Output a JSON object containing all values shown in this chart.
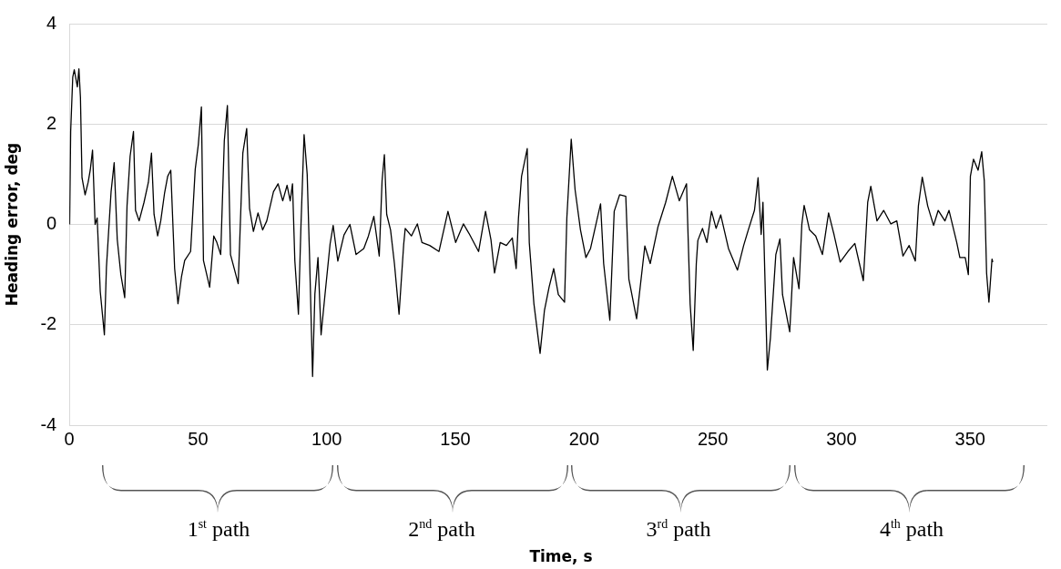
{
  "chart_data": {
    "type": "line",
    "ylabel": "Heading error, deg",
    "x": [
      0.1,
      0.5,
      1.3,
      1.9,
      3.1,
      3.7,
      4.3,
      4.9,
      6.1,
      7.3,
      8.1,
      9.0,
      10.0,
      10.8,
      12.0,
      13.6,
      14.4,
      16.2,
      17.4,
      18.6,
      20.0,
      21.5,
      22.4,
      23.6,
      24.9,
      25.7,
      27.1,
      29.0,
      30.7,
      31.9,
      32.9,
      34.3,
      35.5,
      37.0,
      38.2,
      39.4,
      40.9,
      42.2,
      43.6,
      44.8,
      47.1,
      48.9,
      50.1,
      51.3,
      52.1,
      54.5,
      56.1,
      57.3,
      58.8,
      60.2,
      61.4,
      62.6,
      65.6,
      67.4,
      68.9,
      70.0,
      71.5,
      73.3,
      75.1,
      76.7,
      79.3,
      81.1,
      82.9,
      84.6,
      85.8,
      86.7,
      87.6,
      89.0,
      90.0,
      91.2,
      92.4,
      93.3,
      94.5,
      95.4,
      96.6,
      97.8,
      99.3,
      101.3,
      102.5,
      104.3,
      106.7,
      109.0,
      111.4,
      114.4,
      116.2,
      118.3,
      120.4,
      121.5,
      122.4,
      123.3,
      124.8,
      126.3,
      128.1,
      129.9,
      130.5,
      132.9,
      135.2,
      137.0,
      140.0,
      143.6,
      147.1,
      150.1,
      153.1,
      155.5,
      159.0,
      161.7,
      163.8,
      165.2,
      167.4,
      169.8,
      172.1,
      173.6,
      174.5,
      175.7,
      177.9,
      178.7,
      180.5,
      182.9,
      184.6,
      186.4,
      188.2,
      190.0,
      192.4,
      193.3,
      195.0,
      196.5,
      198.6,
      200.7,
      202.5,
      204.9,
      206.4,
      207.6,
      210.0,
      211.7,
      213.8,
      216.2,
      217.4,
      220.4,
      223.6,
      225.7,
      228.7,
      231.7,
      234.3,
      237.0,
      239.8,
      241.2,
      242.4,
      243.6,
      244.2,
      246.0,
      247.7,
      249.5,
      251.3,
      253.1,
      256.1,
      259.6,
      262.0,
      263.8,
      266.2,
      267.6,
      268.8,
      269.5,
      271.2,
      272.4,
      274.5,
      276.1,
      277.1,
      279.9,
      281.4,
      283.5,
      284.6,
      285.5,
      287.6,
      290.0,
      292.6,
      295.0,
      297.1,
      299.5,
      302.5,
      305.2,
      308.5,
      310.2,
      311.4,
      313.8,
      316.4,
      319.2,
      321.5,
      323.9,
      326.3,
      328.7,
      329.9,
      331.4,
      333.5,
      335.8,
      337.6,
      340.2,
      341.8,
      344.8,
      346.0,
      348.1,
      349.3,
      350.1,
      351.3,
      353.1,
      354.5,
      355.5,
      356.4,
      357.3,
      358.5,
      358.8
    ],
    "series": [
      {
        "color": "#000000",
        "values": [
          0,
          1.85,
          2.93,
          3.08,
          2.74,
          3.1,
          2.53,
          0.93,
          0.59,
          0.84,
          1.08,
          1.48,
          0,
          0.13,
          -1.34,
          -2.2,
          -0.85,
          0.65,
          1.23,
          -0.3,
          -1.0,
          -1.46,
          0.37,
          1.36,
          1.85,
          0.28,
          0.07,
          0.44,
          0.84,
          1.42,
          0.2,
          -0.23,
          0.07,
          0.63,
          0.96,
          1.08,
          -0.88,
          -1.58,
          -1.03,
          -0.72,
          -0.54,
          1.1,
          1.59,
          2.34,
          -0.72,
          -1.25,
          -0.23,
          -0.36,
          -0.6,
          1.67,
          2.37,
          -0.6,
          -1.18,
          1.42,
          1.91,
          0.32,
          -0.14,
          0.23,
          -0.11,
          0.07,
          0.65,
          0.81,
          0.47,
          0.78,
          0.47,
          0.81,
          -0.72,
          -1.79,
          0,
          1.79,
          1.0,
          -0.6,
          -3.03,
          -1.38,
          -0.66,
          -2.2,
          -1.41,
          -0.39,
          -0.02,
          -0.73,
          -0.21,
          0,
          -0.6,
          -0.48,
          -0.23,
          0.16,
          -0.63,
          0.87,
          1.39,
          0.2,
          -0.11,
          -0.78,
          -1.79,
          -0.4,
          -0.08,
          -0.23,
          0.01,
          -0.36,
          -0.42,
          -0.54,
          0.26,
          -0.36,
          0.01,
          -0.2,
          -0.54,
          0.26,
          -0.3,
          -0.97,
          -0.36,
          -0.42,
          -0.27,
          -0.88,
          0.13,
          0.96,
          1.51,
          -0.36,
          -1.58,
          -2.57,
          -1.71,
          -1.25,
          -0.88,
          -1.4,
          -1.55,
          0.13,
          1.7,
          0.69,
          -0.11,
          -0.66,
          -0.48,
          0.07,
          0.41,
          -0.78,
          -1.91,
          0.26,
          0.59,
          0.56,
          -1.09,
          -1.88,
          -0.43,
          -0.78,
          -0.05,
          0.44,
          0.96,
          0.47,
          0.81,
          -1.58,
          -2.51,
          -0.78,
          -0.32,
          -0.08,
          -0.36,
          0.26,
          -0.08,
          0.19,
          -0.48,
          -0.91,
          -0.42,
          -0.11,
          0.28,
          0.93,
          -0.2,
          0.44,
          -2.9,
          -2.26,
          -0.6,
          -0.29,
          -1.4,
          -2.14,
          -0.66,
          -1.28,
          0,
          0.38,
          -0.11,
          -0.23,
          -0.6,
          0.23,
          -0.2,
          -0.75,
          -0.54,
          -0.38,
          -1.12,
          0.44,
          0.76,
          0.07,
          0.28,
          0.01,
          0.07,
          -0.63,
          -0.42,
          -0.73,
          0.37,
          0.94,
          0.37,
          -0.02,
          0.28,
          0.07,
          0.28,
          -0.36,
          -0.66,
          -0.66,
          -1.0,
          0.96,
          1.3,
          1.08,
          1.45,
          0.87,
          -0.97,
          -1.55,
          -0.69,
          -0.75
        ]
      }
    ],
    "xlim": [
      0,
      380
    ],
    "xticks": [
      0,
      50,
      100,
      150,
      200,
      250,
      300,
      350
    ],
    "ylim": [
      -4,
      4
    ],
    "yticks": [
      -4,
      -2,
      0,
      2,
      4
    ],
    "grid": "y",
    "marker": "none",
    "line_style": "solid",
    "legend": false,
    "annotations": [
      "1$^{st}$ path",
      "2$^{nd}$ path",
      "3$^{rd}$ path",
      "4$^{th}$ path",
      "Time, s"
    ]
  }
}
